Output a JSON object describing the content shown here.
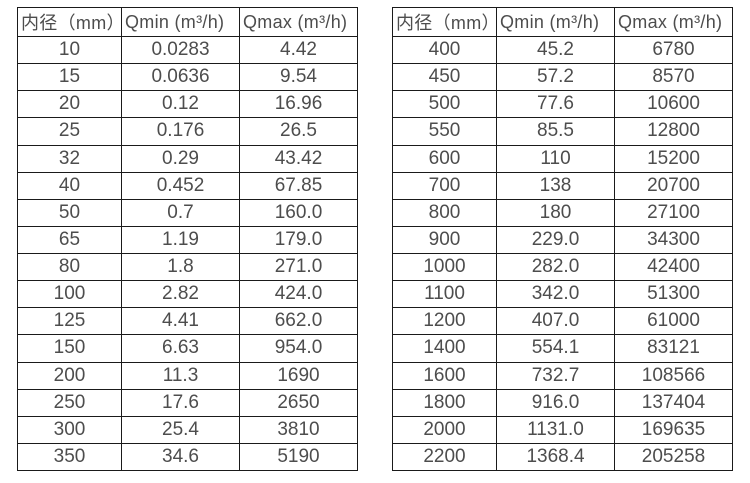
{
  "page": {
    "background": "#ffffff"
  },
  "colors": {
    "border": "#1a1a1a",
    "text": "#4d4d4d",
    "background": "#ffffff"
  },
  "chart_data": [
    {
      "type": "table",
      "headers": [
        "内径（mm）",
        "Qmin (m³/h)",
        "Qmax (m³/h)"
      ],
      "rows": [
        [
          "10",
          "0.0283",
          "4.42"
        ],
        [
          "15",
          "0.0636",
          "9.54"
        ],
        [
          "20",
          "0.12",
          "16.96"
        ],
        [
          "25",
          "0.176",
          "26.5"
        ],
        [
          "32",
          "0.29",
          "43.42"
        ],
        [
          "40",
          "0.452",
          "67.85"
        ],
        [
          "50",
          "0.7",
          "160.0"
        ],
        [
          "65",
          "1.19",
          "179.0"
        ],
        [
          "80",
          "1.8",
          "271.0"
        ],
        [
          "100",
          "2.82",
          "424.0"
        ],
        [
          "125",
          "4.41",
          "662.0"
        ],
        [
          "150",
          "6.63",
          "954.0"
        ],
        [
          "200",
          "11.3",
          "1690"
        ],
        [
          "250",
          "17.6",
          "2650"
        ],
        [
          "300",
          "25.4",
          "3810"
        ],
        [
          "350",
          "34.6",
          "5190"
        ]
      ]
    },
    {
      "type": "table",
      "headers": [
        "内径（mm）",
        "Qmin (m³/h)",
        "Qmax (m³/h)"
      ],
      "rows": [
        [
          "400",
          "45.2",
          "6780"
        ],
        [
          "450",
          "57.2",
          "8570"
        ],
        [
          "500",
          "77.6",
          "10600"
        ],
        [
          "550",
          "85.5",
          "12800"
        ],
        [
          "600",
          "110",
          "15200"
        ],
        [
          "700",
          "138",
          "20700"
        ],
        [
          "800",
          "180",
          "27100"
        ],
        [
          "900",
          "229.0",
          "34300"
        ],
        [
          "1000",
          "282.0",
          "42400"
        ],
        [
          "1100",
          "342.0",
          "51300"
        ],
        [
          "1200",
          "407.0",
          "61000"
        ],
        [
          "1400",
          "554.1",
          "83121"
        ],
        [
          "1600",
          "732.7",
          "108566"
        ],
        [
          "1800",
          "916.0",
          "137404"
        ],
        [
          "2000",
          "1131.0",
          "169635"
        ],
        [
          "2200",
          "1368.4",
          "205258"
        ]
      ]
    }
  ]
}
